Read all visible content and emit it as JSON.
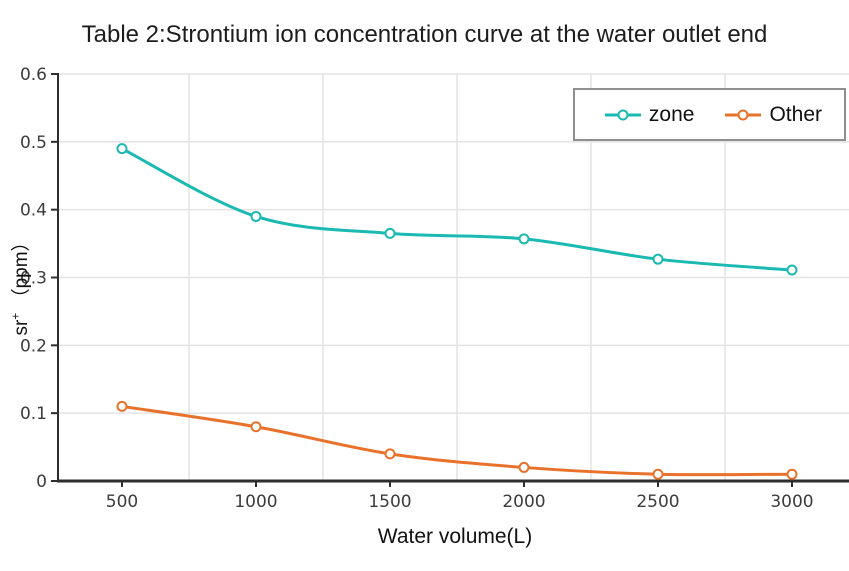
{
  "chart_data": {
    "type": "line",
    "title": "Table 2:Strontium ion concentration curve at the water outlet end",
    "xlabel": "Water volume(L)",
    "ylabel": {
      "base": "sr",
      "sup": "+",
      "unit": "（ppm）"
    },
    "x": [
      500,
      1000,
      1500,
      2000,
      2500,
      3000
    ],
    "x_tick_labels": [
      "500",
      "1000",
      "1500",
      "2000",
      "2500",
      "3000"
    ],
    "series": [
      {
        "name": "zone",
        "color": "#1ab9b2",
        "values": [
          0.49,
          0.39,
          0.365,
          0.357,
          0.327,
          0.311
        ]
      },
      {
        "name": "Other",
        "color": "#e8722b",
        "values": [
          0.11,
          0.08,
          0.04,
          0.02,
          0.01,
          0.01
        ]
      }
    ],
    "y_ticks": {
      "values": [
        0,
        0.1,
        0.2,
        0.3,
        0.4,
        0.5,
        0.6
      ],
      "labels": [
        "0",
        "0.1",
        "0.2",
        "0.3",
        "0.4",
        "0.5",
        "0.6"
      ]
    },
    "x_gridline_values": [
      750,
      1250,
      1750,
      2250,
      2750
    ],
    "ylim": [
      0,
      0.6
    ],
    "grid": true,
    "marker": "open-circle",
    "line_style": "smooth",
    "legend_position": "top-right"
  }
}
